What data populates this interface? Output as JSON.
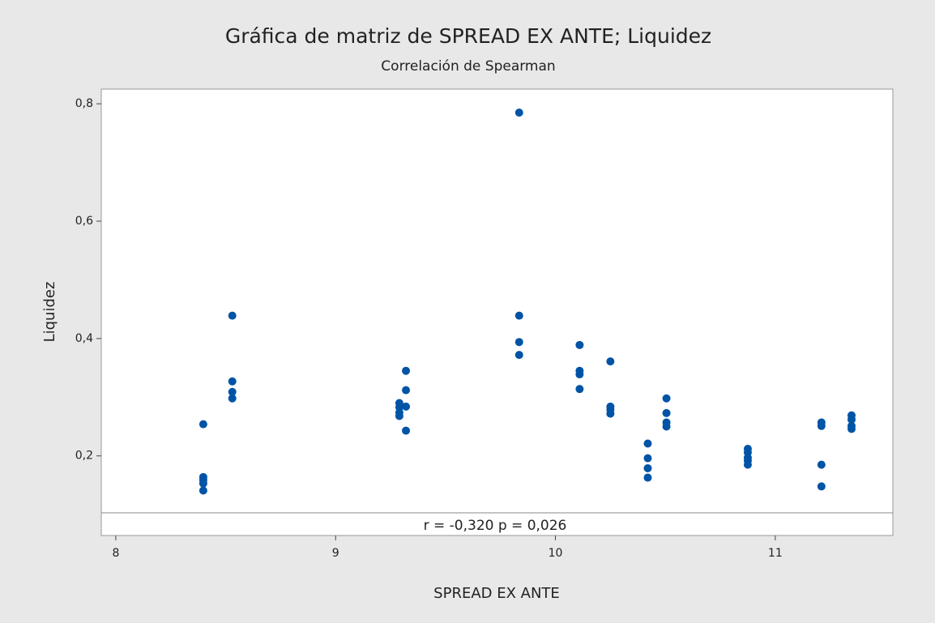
{
  "chart_data": {
    "type": "scatter",
    "title": "Gráfica de matriz de SPREAD EX ANTE; Liquidez",
    "subtitle": "Correlación de Spearman",
    "xlabel": "SPREAD EX ANTE",
    "ylabel": "Liquidez",
    "annotation": "r = -0,320  p = 0,026",
    "color": "#0054a6",
    "x": [
      8.398,
      8.398,
      8.398,
      8.398,
      8.398,
      8.53,
      8.53,
      8.53,
      8.53,
      9.29,
      9.29,
      9.29,
      9.29,
      9.32,
      9.32,
      9.32,
      9.32,
      9.835,
      9.835,
      9.835,
      9.835,
      10.11,
      10.11,
      10.11,
      10.11,
      10.25,
      10.25,
      10.25,
      10.25,
      10.42,
      10.42,
      10.42,
      10.42,
      10.505,
      10.505,
      10.505,
      10.505,
      10.875,
      10.875,
      10.875,
      10.875,
      10.875,
      11.21,
      11.21,
      11.21,
      11.21,
      11.347,
      11.347,
      11.347,
      11.347
    ],
    "values": [
      0.254,
      0.164,
      0.159,
      0.153,
      0.141,
      0.439,
      0.327,
      0.309,
      0.298,
      0.29,
      0.283,
      0.274,
      0.268,
      0.345,
      0.312,
      0.284,
      0.243,
      0.785,
      0.439,
      0.394,
      0.372,
      0.389,
      0.345,
      0.339,
      0.314,
      0.361,
      0.284,
      0.279,
      0.272,
      0.221,
      0.196,
      0.179,
      0.163,
      0.298,
      0.273,
      0.257,
      0.25,
      0.212,
      0.206,
      0.197,
      0.192,
      0.185,
      0.257,
      0.251,
      0.185,
      0.148,
      0.269,
      0.262,
      0.251,
      0.246
    ],
    "xlim": [
      7.934,
      11.535
    ],
    "ylim": [
      0.103,
      0.825
    ],
    "xticks": [
      8,
      9,
      10,
      11
    ],
    "yticks": [
      {
        "value": 0.2,
        "label": "0,2"
      },
      {
        "value": 0.4,
        "label": "0,4"
      },
      {
        "value": 0.6,
        "label": "0,6"
      },
      {
        "value": 0.8,
        "label": "0,8"
      }
    ]
  }
}
